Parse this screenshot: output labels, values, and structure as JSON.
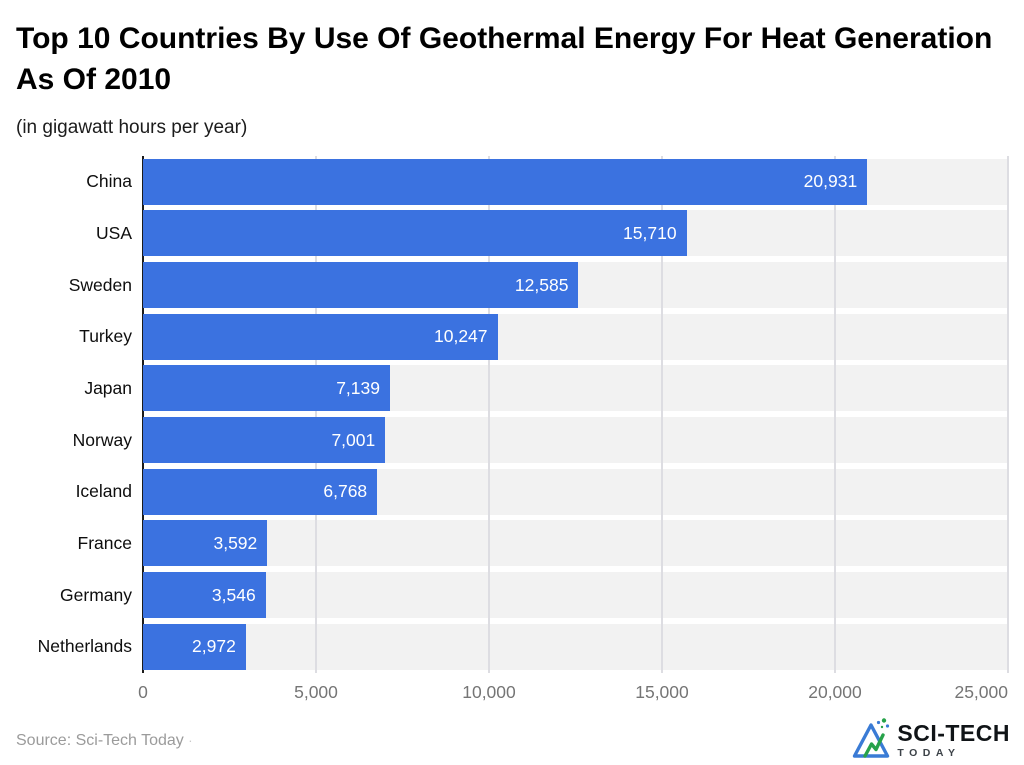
{
  "title": "Top 10 Countries By Use Of Geothermal Energy For Heat Generation As Of 2010",
  "subtitle": "(in gigawatt hours per year)",
  "source_text": "Source: Sci-Tech Today",
  "source_suffix": "·",
  "logo": {
    "line1": "SCI-TECH",
    "line2": "TODAY"
  },
  "colors": {
    "bar": "#3b72e0",
    "plot_background": "#f2f2f2",
    "gridline": "#dddde2",
    "axis_line": "#1b1b1b",
    "tick_label": "#757575",
    "value_label": "#ffffff",
    "logo_blue": "#3a7bd5",
    "logo_green": "#27a24a"
  },
  "chart_data": {
    "type": "bar",
    "orientation": "horizontal",
    "title": "Top 10 Countries By Use Of Geothermal Energy For Heat Generation As Of 2010",
    "subtitle": "(in gigawatt hours per year)",
    "xlabel": "",
    "ylabel": "",
    "categories": [
      "China",
      "USA",
      "Sweden",
      "Turkey",
      "Japan",
      "Norway",
      "Iceland",
      "France",
      "Germany",
      "Netherlands"
    ],
    "values": [
      20931,
      15710,
      12585,
      10247,
      7139,
      7001,
      6768,
      3592,
      3546,
      2972
    ],
    "value_labels": [
      "20,931",
      "15,710",
      "12,585",
      "10,247",
      "7,139",
      "7,001",
      "6,768",
      "3,592",
      "3,546",
      "2,972"
    ],
    "xlim": [
      0,
      25000
    ],
    "x_ticks": [
      0,
      5000,
      10000,
      15000,
      20000,
      25000
    ],
    "x_tick_labels": [
      "0",
      "5,000",
      "10,000",
      "15,000",
      "20,000",
      "25,000"
    ],
    "grid": "vertical",
    "legend": "none",
    "unit": "gigawatt hours per year"
  }
}
